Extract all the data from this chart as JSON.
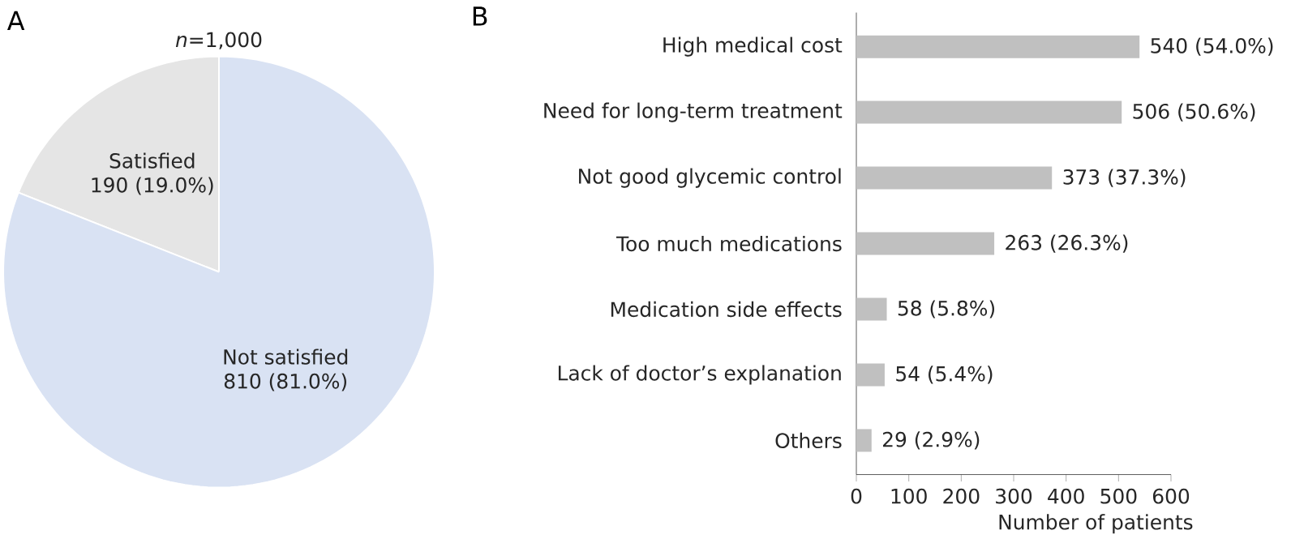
{
  "chart_data": [
    {
      "type": "pie",
      "title": "A",
      "subtitle": "*n*=1,000",
      "categories": [
        "Satisfied",
        "Not satisfied"
      ],
      "values": [
        190,
        810
      ],
      "value_labels": [
        "190 (19.0%)",
        "810 (81.0%)"
      ],
      "colors": [
        "#e5e5e5",
        "#d9e2f3"
      ]
    },
    {
      "type": "bar",
      "orientation": "horizontal",
      "title": "B",
      "xlabel": "Number of patients",
      "categories": [
        "High medical cost",
        "Need for long-term treatment",
        "Not good glycemic control",
        "Too much medications",
        "Medication side effects",
        "Lack of doctor’s explanation",
        "Others"
      ],
      "values": [
        540,
        506,
        373,
        263,
        58,
        54,
        29
      ],
      "value_labels": [
        "540 (54.0%)",
        "506 (50.6%)",
        "373 (37.3%)",
        "263 (26.3%)",
        "58 (5.8%)",
        "54 (5.4%)",
        "29 (2.9%)"
      ],
      "color": "#c0c0c0",
      "xlim": [
        0,
        600
      ],
      "xticks": [
        0,
        100,
        200,
        300,
        400,
        500,
        600
      ]
    }
  ]
}
